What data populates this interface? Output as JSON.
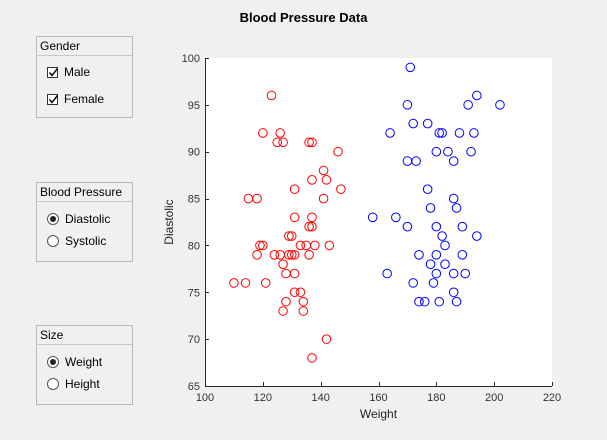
{
  "title": "Blood Pressure Data",
  "panels": {
    "gender": {
      "title": "Gender",
      "options": [
        {
          "label": "Male",
          "checked": true
        },
        {
          "label": "Female",
          "checked": true
        }
      ]
    },
    "bp": {
      "title": "Blood Pressure",
      "options": [
        {
          "label": "Diastolic",
          "selected": true
        },
        {
          "label": "Systolic",
          "selected": false
        }
      ]
    },
    "size": {
      "title": "Size",
      "options": [
        {
          "label": "Weight",
          "selected": true
        },
        {
          "label": "Height",
          "selected": false
        }
      ]
    }
  },
  "chart_data": {
    "type": "scatter",
    "title": "Blood Pressure Data",
    "xlabel": "Weight",
    "ylabel": "Diastolic",
    "xlim": [
      100,
      220
    ],
    "ylim": [
      65,
      100
    ],
    "xticks": [
      100,
      120,
      140,
      160,
      180,
      200,
      220
    ],
    "yticks": [
      65,
      70,
      75,
      80,
      85,
      90,
      95,
      100
    ],
    "grid": false,
    "marker": "open-circle",
    "series": [
      {
        "color": "#ff0000",
        "points": [
          [
            123,
            96
          ],
          [
            120,
            92
          ],
          [
            126,
            92
          ],
          [
            125,
            91
          ],
          [
            127,
            91
          ],
          [
            136,
            91
          ],
          [
            137,
            91
          ],
          [
            146,
            90
          ],
          [
            141,
            88
          ],
          [
            137,
            87
          ],
          [
            142,
            87
          ],
          [
            131,
            86
          ],
          [
            147,
            86
          ],
          [
            115,
            85
          ],
          [
            118,
            85
          ],
          [
            141,
            85
          ],
          [
            137,
            83
          ],
          [
            131,
            83
          ],
          [
            136,
            82
          ],
          [
            137,
            82
          ],
          [
            135,
            80
          ],
          [
            143,
            80
          ],
          [
            138,
            80
          ],
          [
            133,
            80
          ],
          [
            119,
            80
          ],
          [
            120,
            80
          ],
          [
            118,
            79
          ],
          [
            124,
            79
          ],
          [
            126,
            79
          ],
          [
            129,
            79
          ],
          [
            130,
            79
          ],
          [
            131,
            79
          ],
          [
            136,
            79
          ],
          [
            127,
            78
          ],
          [
            128,
            77
          ],
          [
            131,
            77
          ],
          [
            129,
            81
          ],
          [
            130,
            81
          ],
          [
            121,
            76
          ],
          [
            110,
            76
          ],
          [
            114,
            76
          ],
          [
            131,
            75
          ],
          [
            133,
            75
          ],
          [
            128,
            74
          ],
          [
            134,
            74
          ],
          [
            127,
            73
          ],
          [
            134,
            73
          ],
          [
            142,
            70
          ],
          [
            137,
            68
          ]
        ]
      },
      {
        "color": "#0000ff",
        "points": [
          [
            171,
            99
          ],
          [
            194,
            96
          ],
          [
            170,
            95
          ],
          [
            191,
            95
          ],
          [
            202,
            95
          ],
          [
            172,
            93
          ],
          [
            177,
            93
          ],
          [
            164,
            92
          ],
          [
            181,
            92
          ],
          [
            182,
            92
          ],
          [
            188,
            92
          ],
          [
            193,
            92
          ],
          [
            180,
            90
          ],
          [
            184,
            90
          ],
          [
            192,
            90
          ],
          [
            170,
            89
          ],
          [
            173,
            89
          ],
          [
            186,
            89
          ],
          [
            177,
            86
          ],
          [
            186,
            85
          ],
          [
            187,
            84
          ],
          [
            178,
            84
          ],
          [
            158,
            83
          ],
          [
            166,
            83
          ],
          [
            180,
            82
          ],
          [
            170,
            82
          ],
          [
            189,
            82
          ],
          [
            182,
            81
          ],
          [
            194,
            81
          ],
          [
            183,
            80
          ],
          [
            180,
            79
          ],
          [
            189,
            79
          ],
          [
            174,
            79
          ],
          [
            178,
            78
          ],
          [
            183,
            78
          ],
          [
            180,
            77
          ],
          [
            186,
            77
          ],
          [
            163,
            77
          ],
          [
            190,
            77
          ],
          [
            179,
            76
          ],
          [
            172,
            76
          ],
          [
            186,
            75
          ],
          [
            174,
            74
          ],
          [
            176,
            74
          ],
          [
            181,
            74
          ],
          [
            187,
            74
          ]
        ]
      }
    ]
  }
}
